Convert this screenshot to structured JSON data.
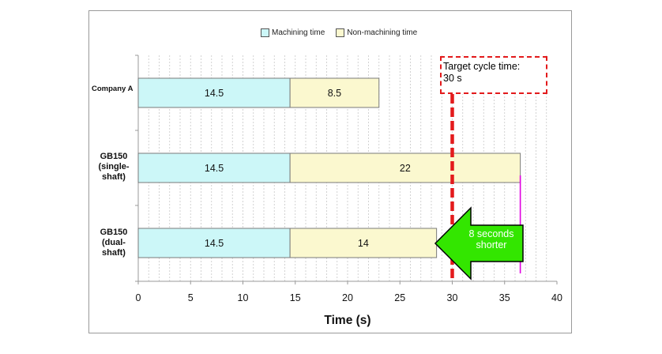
{
  "chart_data": {
    "type": "bar",
    "orientation": "horizontal",
    "stacked": true,
    "categories": [
      "Company A",
      "GB150 (single-shaft)",
      "GB150 (dual-shaft)"
    ],
    "series": [
      {
        "name": "Machining time",
        "values": [
          14.5,
          14.5,
          14.5
        ],
        "color": "#ccf7f8"
      },
      {
        "name": "Non-machining time",
        "values": [
          8.5,
          22,
          14
        ],
        "color": "#fbf8cf"
      }
    ],
    "xlabel": "Time (s)",
    "xlim": [
      0,
      40
    ],
    "xticks": [
      0,
      5,
      10,
      15,
      20,
      25,
      30,
      35,
      40
    ],
    "grid": true,
    "legend_position": "top-center",
    "target_line": {
      "value": 30,
      "color": "#e31a1c"
    },
    "marker_line": {
      "value": 36.5,
      "color": "#e000e0"
    },
    "annotations": {
      "target_label": [
        "Target cycle time:",
        "30 s"
      ],
      "arrow_label": [
        "8 seconds",
        "shorter"
      ],
      "arrow_color": "#33e600"
    }
  },
  "labels": {
    "company_a": "Company A",
    "single": [
      "GB150",
      "(single-",
      "shaft)"
    ],
    "dual": [
      "GB150",
      "(dual-",
      "shaft)"
    ]
  }
}
